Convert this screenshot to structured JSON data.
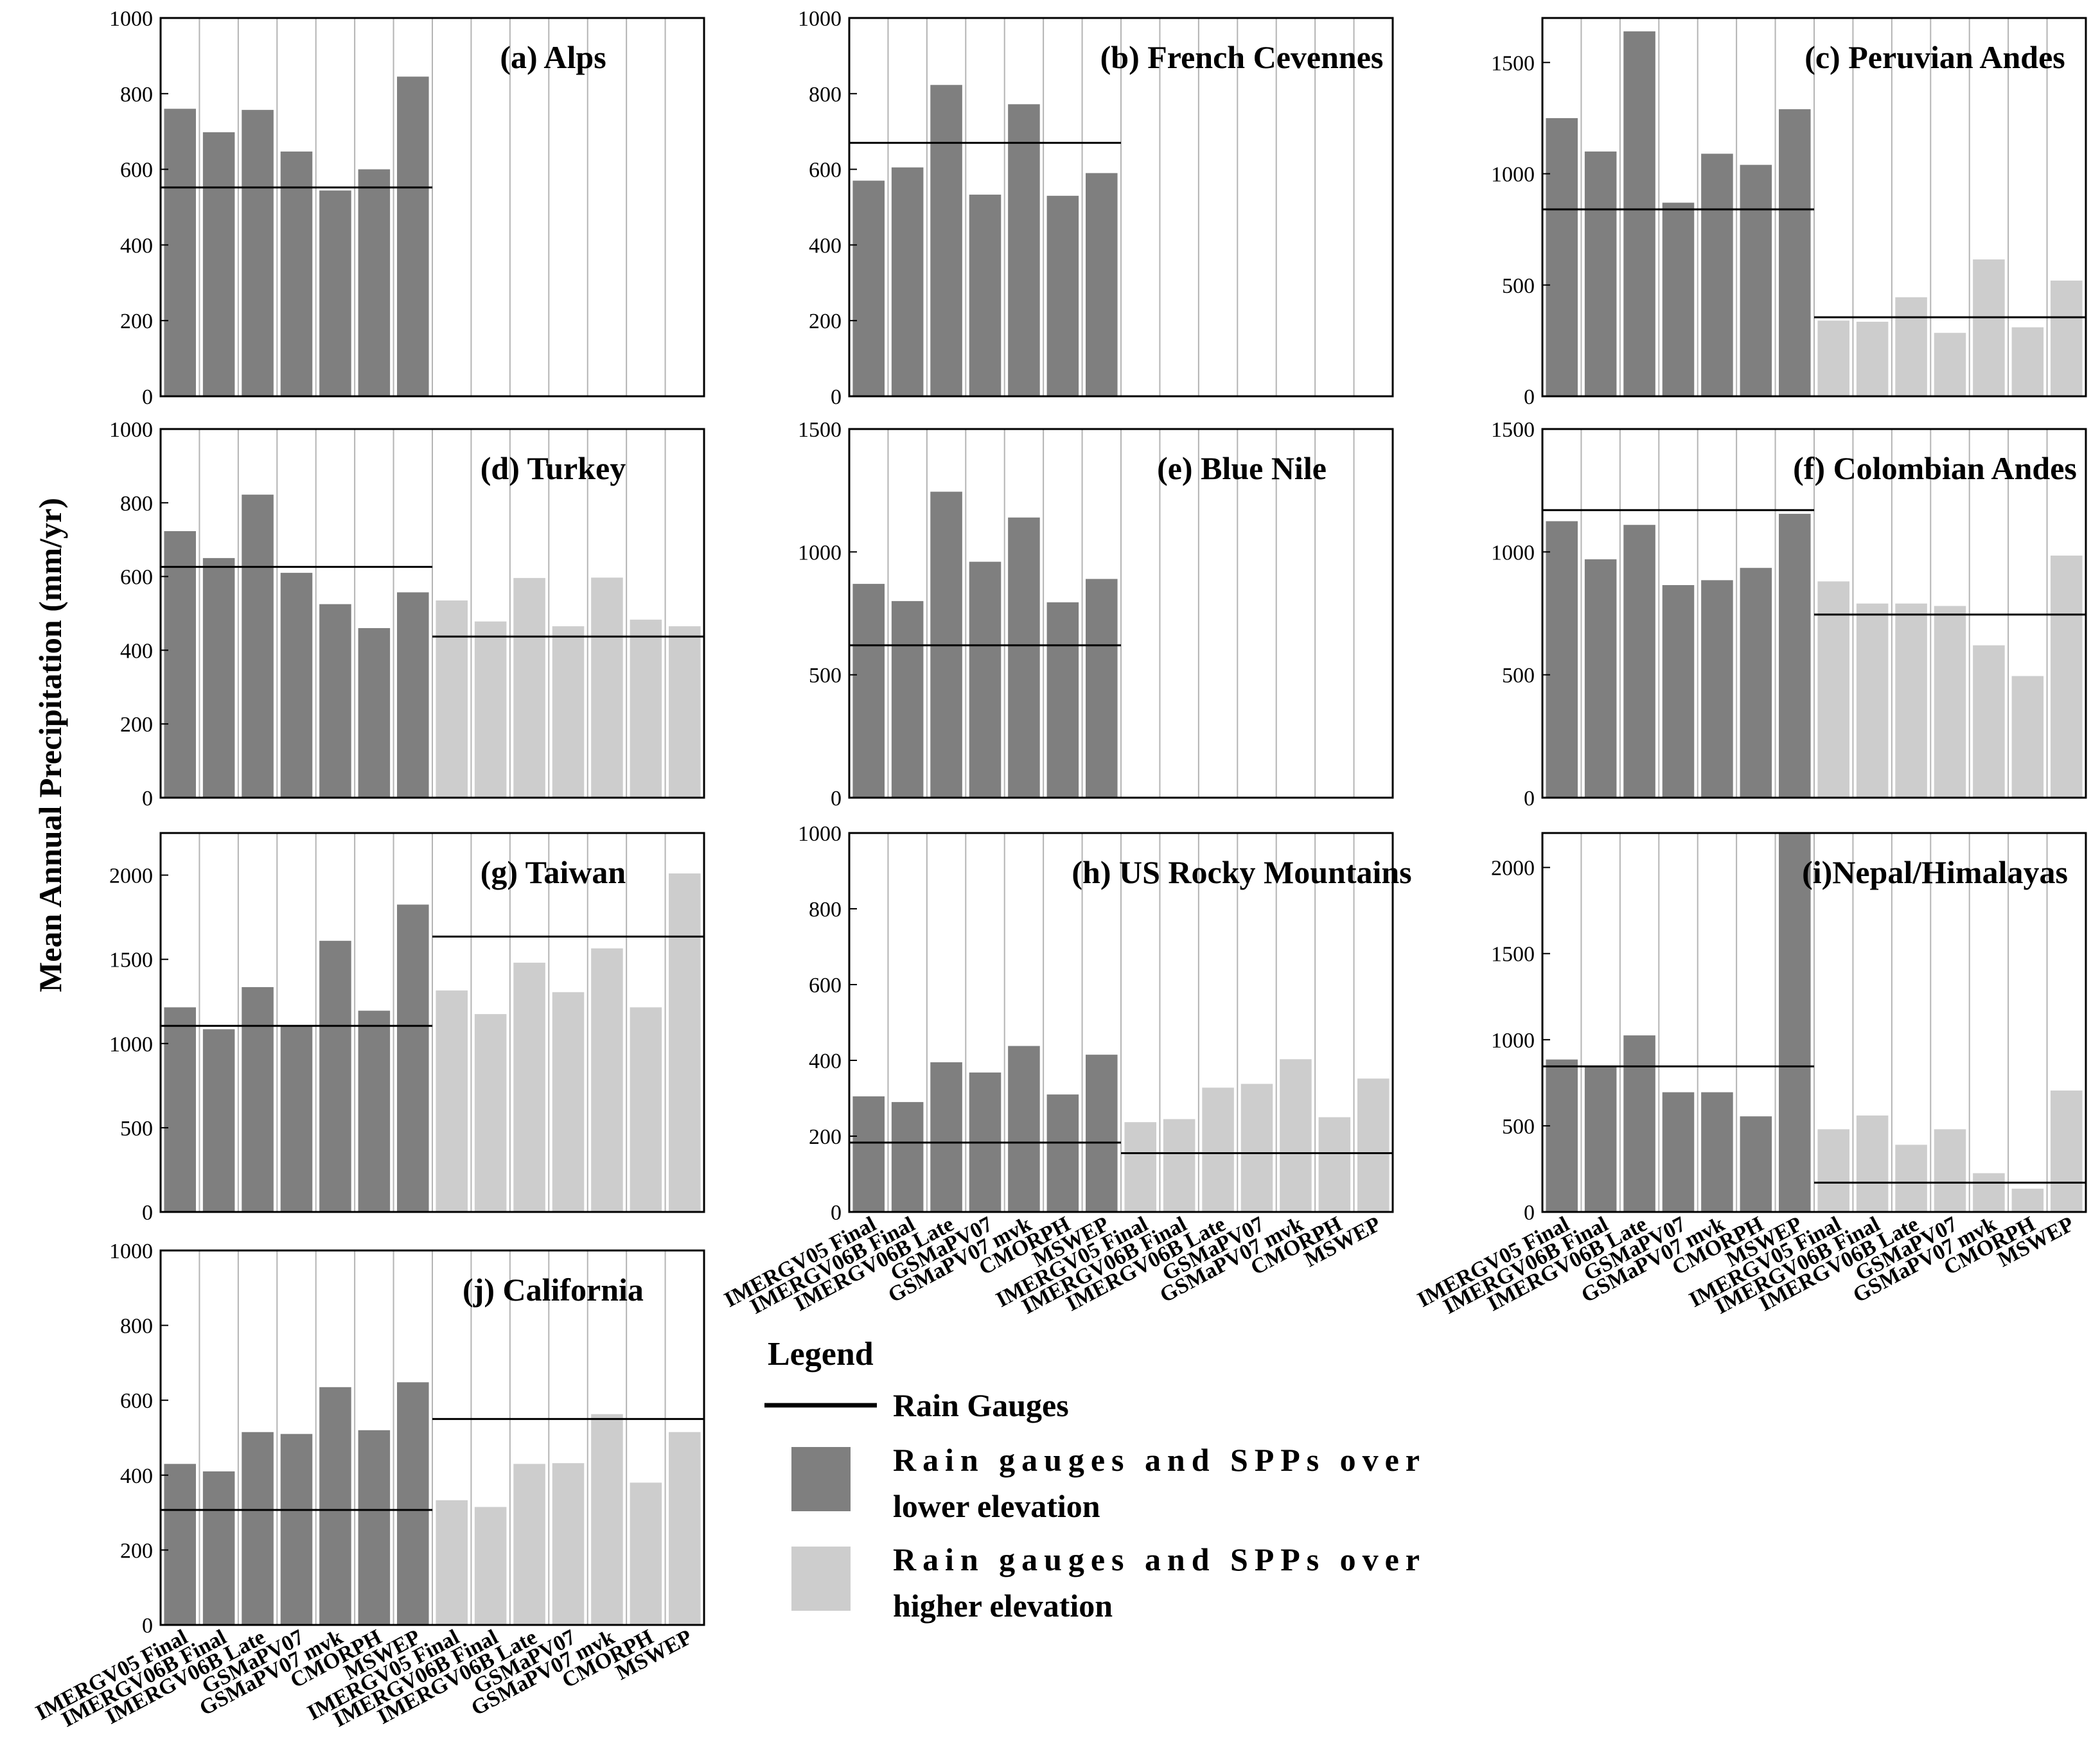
{
  "ylabel": "Mean Annual Precipitation (mm/yr)",
  "categories": [
    "IMERGV05 Final",
    "IMERGV06B Final",
    "IMERGV06B Late",
    "GSMaPV07",
    "GSMaPV07 mvk",
    "CMORPH",
    "MSWEP"
  ],
  "colors": {
    "low": "#7f7f7f",
    "high": "#cdcdcd",
    "gauge": "#000000",
    "grid": "#b4b4b4"
  },
  "legend": {
    "title": "Legend",
    "gauge_label": "Rain Gauges",
    "low_line1": "Rain gauges and SPPs over",
    "low_line2": "lower elevation",
    "high_line1": "Rain gauges and SPPs over",
    "high_line2": "higher elevation"
  },
  "chart_data": [
    {
      "id": "a",
      "type": "bar",
      "title": "(a) Alps",
      "ylim": [
        0,
        1000
      ],
      "yticks": [
        0,
        200,
        400,
        600,
        800,
        1000
      ],
      "grid": true,
      "series": [
        {
          "name": "lower elevation",
          "values": [
            760,
            698,
            757,
            647,
            544,
            600,
            845
          ],
          "gauge": 552
        }
      ]
    },
    {
      "id": "b",
      "type": "bar",
      "title": "(b) French Cevennes",
      "ylim": [
        0,
        1000
      ],
      "yticks": [
        0,
        200,
        400,
        600,
        800,
        1000
      ],
      "grid": true,
      "series": [
        {
          "name": "lower elevation",
          "values": [
            570,
            605,
            823,
            533,
            772,
            530,
            590
          ],
          "gauge": 670
        }
      ]
    },
    {
      "id": "c",
      "type": "bar",
      "title": "(c) Peruvian Andes",
      "ylim": [
        0,
        1700
      ],
      "yticks": [
        0,
        500,
        1000,
        1500
      ],
      "grid": true,
      "series": [
        {
          "name": "lower elevation",
          "values": [
            1250,
            1100,
            1640,
            870,
            1090,
            1040,
            1290
          ],
          "gauge": 840
        },
        {
          "name": "higher elevation",
          "values": [
            340,
            335,
            445,
            285,
            615,
            310,
            520
          ],
          "gauge": 355
        }
      ]
    },
    {
      "id": "d",
      "type": "bar",
      "title": "(d) Turkey",
      "ylim": [
        0,
        1000
      ],
      "yticks": [
        0,
        200,
        400,
        600,
        800,
        1000
      ],
      "grid": true,
      "series": [
        {
          "name": "lower elevation",
          "values": [
            723,
            650,
            822,
            610,
            525,
            460,
            557
          ],
          "gauge": 626
        },
        {
          "name": "higher elevation",
          "values": [
            535,
            478,
            596,
            465,
            597,
            483,
            465
          ],
          "gauge": 437
        }
      ]
    },
    {
      "id": "e",
      "type": "bar",
      "title": "(e) Blue Nile",
      "ylim": [
        0,
        1500
      ],
      "yticks": [
        0,
        500,
        1000,
        1500
      ],
      "grid": true,
      "series": [
        {
          "name": "lower elevation",
          "values": [
            870,
            800,
            1245,
            960,
            1140,
            795,
            890
          ],
          "gauge": 620
        }
      ]
    },
    {
      "id": "f",
      "type": "bar",
      "title": "(f) Colombian Andes",
      "ylim": [
        0,
        1500
      ],
      "yticks": [
        0,
        500,
        1000,
        1500
      ],
      "grid": true,
      "series": [
        {
          "name": "lower elevation",
          "values": [
            1125,
            970,
            1110,
            865,
            885,
            935,
            1155
          ],
          "gauge": 1170
        },
        {
          "name": "higher elevation",
          "values": [
            880,
            790,
            790,
            780,
            620,
            495,
            985
          ],
          "gauge": 745
        }
      ]
    },
    {
      "id": "g",
      "type": "bar",
      "title": "(g) Taiwan",
      "ylim": [
        0,
        2250
      ],
      "yticks": [
        0,
        500,
        1000,
        1500,
        2000
      ],
      "grid": true,
      "series": [
        {
          "name": "lower elevation",
          "values": [
            1215,
            1085,
            1335,
            1110,
            1610,
            1195,
            1825
          ],
          "gauge": 1105
        },
        {
          "name": "higher elevation",
          "values": [
            1315,
            1175,
            1480,
            1305,
            1565,
            1215,
            2010
          ],
          "gauge": 1635
        }
      ]
    },
    {
      "id": "h",
      "type": "bar",
      "title": "(h) US Rocky Mountains",
      "ylim": [
        0,
        1000
      ],
      "yticks": [
        0,
        200,
        400,
        600,
        800,
        1000
      ],
      "grid": true,
      "series": [
        {
          "name": "lower elevation",
          "values": [
            305,
            290,
            395,
            368,
            438,
            310,
            415
          ],
          "gauge": 183
        },
        {
          "name": "higher elevation",
          "values": [
            237,
            245,
            328,
            338,
            403,
            250,
            352
          ],
          "gauge": 155
        }
      ]
    },
    {
      "id": "i",
      "type": "bar",
      "title": "(i)Nepal/Himalayas",
      "ylim": [
        0,
        2200
      ],
      "yticks": [
        0,
        500,
        1000,
        1500,
        2000
      ],
      "grid": true,
      "series": [
        {
          "name": "lower elevation",
          "values": [
            885,
            845,
            1025,
            695,
            695,
            555,
            2200
          ],
          "gauge": 845
        },
        {
          "name": "higher elevation",
          "values": [
            480,
            560,
            390,
            480,
            225,
            135,
            705
          ],
          "gauge": 170
        }
      ]
    },
    {
      "id": "j",
      "type": "bar",
      "title": "(j) California",
      "ylim": [
        0,
        1000
      ],
      "yticks": [
        0,
        200,
        400,
        600,
        800,
        1000
      ],
      "grid": true,
      "series": [
        {
          "name": "lower elevation",
          "values": [
            430,
            410,
            515,
            510,
            635,
            520,
            648
          ],
          "gauge": 307
        },
        {
          "name": "higher elevation",
          "values": [
            333,
            315,
            430,
            432,
            563,
            380,
            515
          ],
          "gauge": 550
        }
      ]
    }
  ]
}
